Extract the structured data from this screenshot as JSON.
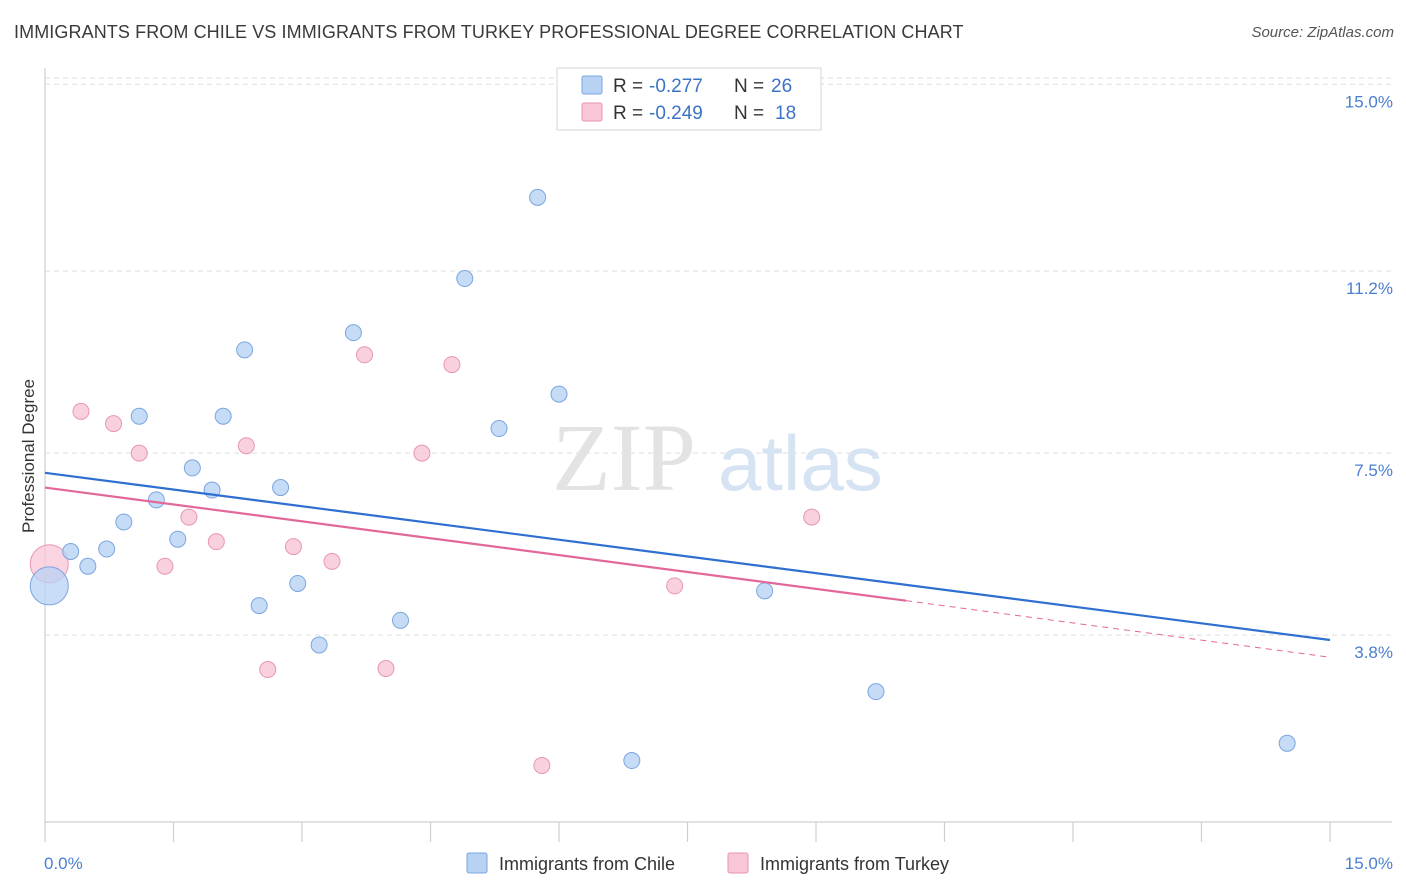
{
  "colors": {
    "chile_fill": "#b8d2f3",
    "chile_stroke": "#7aa6e0",
    "chile_line": "#2f6fd1",
    "turkey_fill": "#f8c6d6",
    "turkey_stroke": "#e896b1",
    "turkey_line": "#e2689a",
    "tick_label": "#4a7fd0",
    "grid": "#dddddd"
  },
  "chart_data": {
    "type": "scatter",
    "title": "IMMIGRANTS FROM CHILE VS IMMIGRANTS FROM TURKEY PROFESSIONAL DEGREE CORRELATION CHART",
    "source": "Source: ZipAtlas.com",
    "xlabel": "",
    "ylabel": "Professional Degree",
    "xlim": [
      0,
      15
    ],
    "ylim": [
      0,
      15.9
    ],
    "x_tick_labels": [
      "0.0%",
      "15.0%"
    ],
    "y_ticks": [
      {
        "value": 3.8,
        "label": "3.8%"
      },
      {
        "value": 7.5,
        "label": "7.5%"
      },
      {
        "value": 11.2,
        "label": "11.2%"
      },
      {
        "value": 15.0,
        "label": "15.0%"
      }
    ],
    "legend": [
      {
        "r_label": "R = ",
        "r_value": "-0.277",
        "n_label": "N = ",
        "n_value": "26"
      },
      {
        "r_label": "R = ",
        "r_value": "-0.249",
        "n_label": "N = ",
        "n_value": "18"
      }
    ],
    "watermark": "ZIPatlas",
    "series": [
      {
        "name": "Immigrants from Chile",
        "points": [
          {
            "x": 0.05,
            "y": 4.8,
            "size": "large"
          },
          {
            "x": 0.3,
            "y": 5.5
          },
          {
            "x": 0.5,
            "y": 5.2
          },
          {
            "x": 0.72,
            "y": 5.55
          },
          {
            "x": 0.92,
            "y": 6.1
          },
          {
            "x": 1.1,
            "y": 8.25
          },
          {
            "x": 1.3,
            "y": 6.55
          },
          {
            "x": 1.55,
            "y": 5.75
          },
          {
            "x": 1.72,
            "y": 7.2
          },
          {
            "x": 1.95,
            "y": 6.75
          },
          {
            "x": 2.08,
            "y": 8.25
          },
          {
            "x": 2.33,
            "y": 9.6
          },
          {
            "x": 2.5,
            "y": 4.4
          },
          {
            "x": 2.75,
            "y": 6.8
          },
          {
            "x": 2.95,
            "y": 4.85
          },
          {
            "x": 3.2,
            "y": 3.6
          },
          {
            "x": 3.6,
            "y": 9.95
          },
          {
            "x": 4.15,
            "y": 4.1
          },
          {
            "x": 4.9,
            "y": 11.05
          },
          {
            "x": 5.3,
            "y": 8.0
          },
          {
            "x": 5.75,
            "y": 12.7
          },
          {
            "x": 6.0,
            "y": 8.7
          },
          {
            "x": 6.85,
            "y": 1.25
          },
          {
            "x": 8.4,
            "y": 4.7
          },
          {
            "x": 9.7,
            "y": 2.65
          },
          {
            "x": 14.5,
            "y": 1.6
          }
        ],
        "trend": {
          "x1": 0,
          "y1": 7.1,
          "x2": 15,
          "y2": 3.7
        }
      },
      {
        "name": "Immigrants from Turkey",
        "points": [
          {
            "x": 0.05,
            "y": 5.25,
            "size": "large"
          },
          {
            "x": 0.42,
            "y": 8.35
          },
          {
            "x": 0.8,
            "y": 8.1
          },
          {
            "x": 1.1,
            "y": 7.5
          },
          {
            "x": 1.4,
            "y": 5.2
          },
          {
            "x": 1.68,
            "y": 6.2
          },
          {
            "x": 2.0,
            "y": 5.7
          },
          {
            "x": 2.35,
            "y": 7.65
          },
          {
            "x": 2.6,
            "y": 3.1
          },
          {
            "x": 2.9,
            "y": 5.6
          },
          {
            "x": 3.35,
            "y": 5.3
          },
          {
            "x": 3.73,
            "y": 9.5
          },
          {
            "x": 3.98,
            "y": 3.12
          },
          {
            "x": 4.4,
            "y": 7.5
          },
          {
            "x": 4.75,
            "y": 9.3
          },
          {
            "x": 5.8,
            "y": 1.15
          },
          {
            "x": 7.35,
            "y": 4.8
          },
          {
            "x": 8.95,
            "y": 6.2
          }
        ],
        "trend": {
          "x1": 0,
          "y1": 6.8,
          "x2": 10.05,
          "y2": 4.5
        },
        "trend_dashed": {
          "x1": 10.05,
          "y1": 4.5,
          "x2": 15,
          "y2": 3.35
        }
      }
    ]
  }
}
